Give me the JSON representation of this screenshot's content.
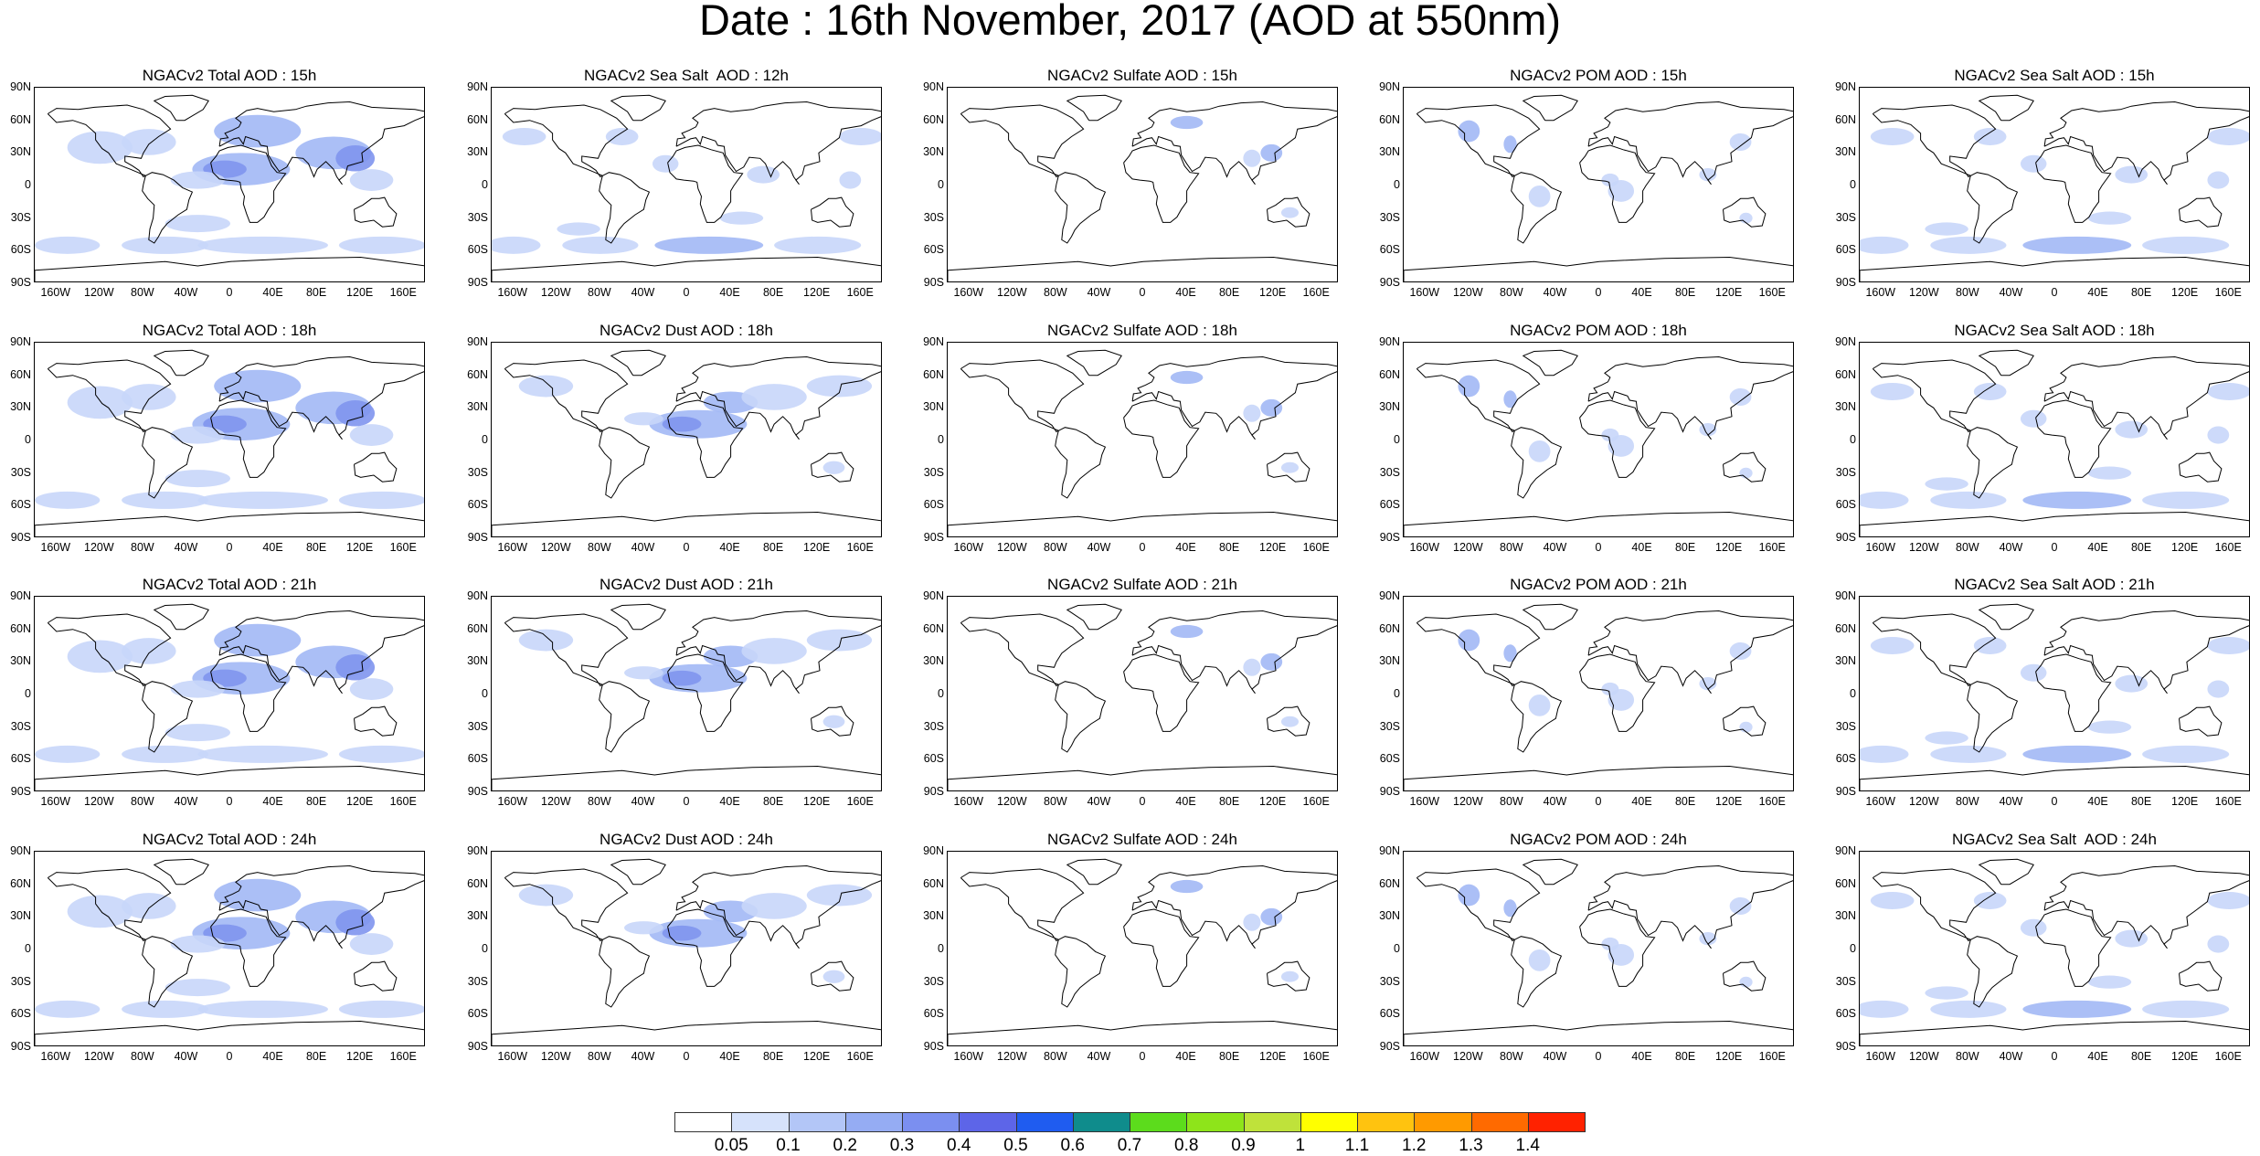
{
  "title": "Date : 16th November, 2017 (AOD at 550nm)",
  "panels": [
    [
      "NGACv2 Total AOD : 15h",
      "NGACv2 Sea Salt  AOD : 12h",
      "NGACv2 Sulfate AOD : 15h",
      "NGACv2 POM AOD : 15h",
      "NGACv2 Sea Salt AOD : 15h"
    ],
    [
      "NGACv2 Total AOD : 18h",
      "NGACv2 Dust AOD : 18h",
      "NGACv2 Sulfate AOD : 18h",
      "NGACv2 POM AOD : 18h",
      "NGACv2 Sea Salt AOD : 18h"
    ],
    [
      "NGACv2 Total AOD : 21h",
      "NGACv2 Dust AOD : 21h",
      "NGACv2 Sulfate AOD : 21h",
      "NGACv2 POM AOD : 21h",
      "NGACv2 Sea Salt AOD : 21h"
    ],
    [
      "NGACv2 Total AOD : 24h",
      "NGACv2 Dust AOD : 24h",
      "NGACv2 Sulfate AOD : 24h",
      "NGACv2 POM AOD : 24h",
      "NGACv2 Sea Salt  AOD : 24h"
    ]
  ],
  "lat_ticks": [
    "90N",
    "60N",
    "30N",
    "0",
    "30S",
    "60S",
    "90S"
  ],
  "lon_ticks": [
    "160W",
    "120W",
    "80W",
    "40W",
    "0",
    "40E",
    "80E",
    "120E",
    "160E"
  ],
  "lon_tick_values": [
    -160,
    -120,
    -80,
    -40,
    0,
    40,
    80,
    120,
    160
  ],
  "lat_tick_values": [
    90,
    60,
    30,
    0,
    -30,
    -60,
    -90
  ],
  "colorbar": {
    "labels": [
      "0.05",
      "0.1",
      "0.2",
      "0.3",
      "0.4",
      "0.5",
      "0.6",
      "0.7",
      "0.8",
      "0.9",
      "1",
      "1.1",
      "1.2",
      "1.3",
      "1.4"
    ],
    "colors": [
      "#ffffff",
      "#d6e2fb",
      "#b3c6f7",
      "#95acf3",
      "#7b8ff0",
      "#5d65e8",
      "#1f5cf0",
      "#0f8c8c",
      "#5cdc1c",
      "#8ee41a",
      "#bfe23a",
      "#ffff00",
      "#ffc30f",
      "#ff9a00",
      "#ff6a00",
      "#ff2200"
    ]
  },
  "field_colors": {
    "light": "#c8d6fa",
    "mid": "#a2b8f5",
    "dark": "#7f95ee"
  }
}
